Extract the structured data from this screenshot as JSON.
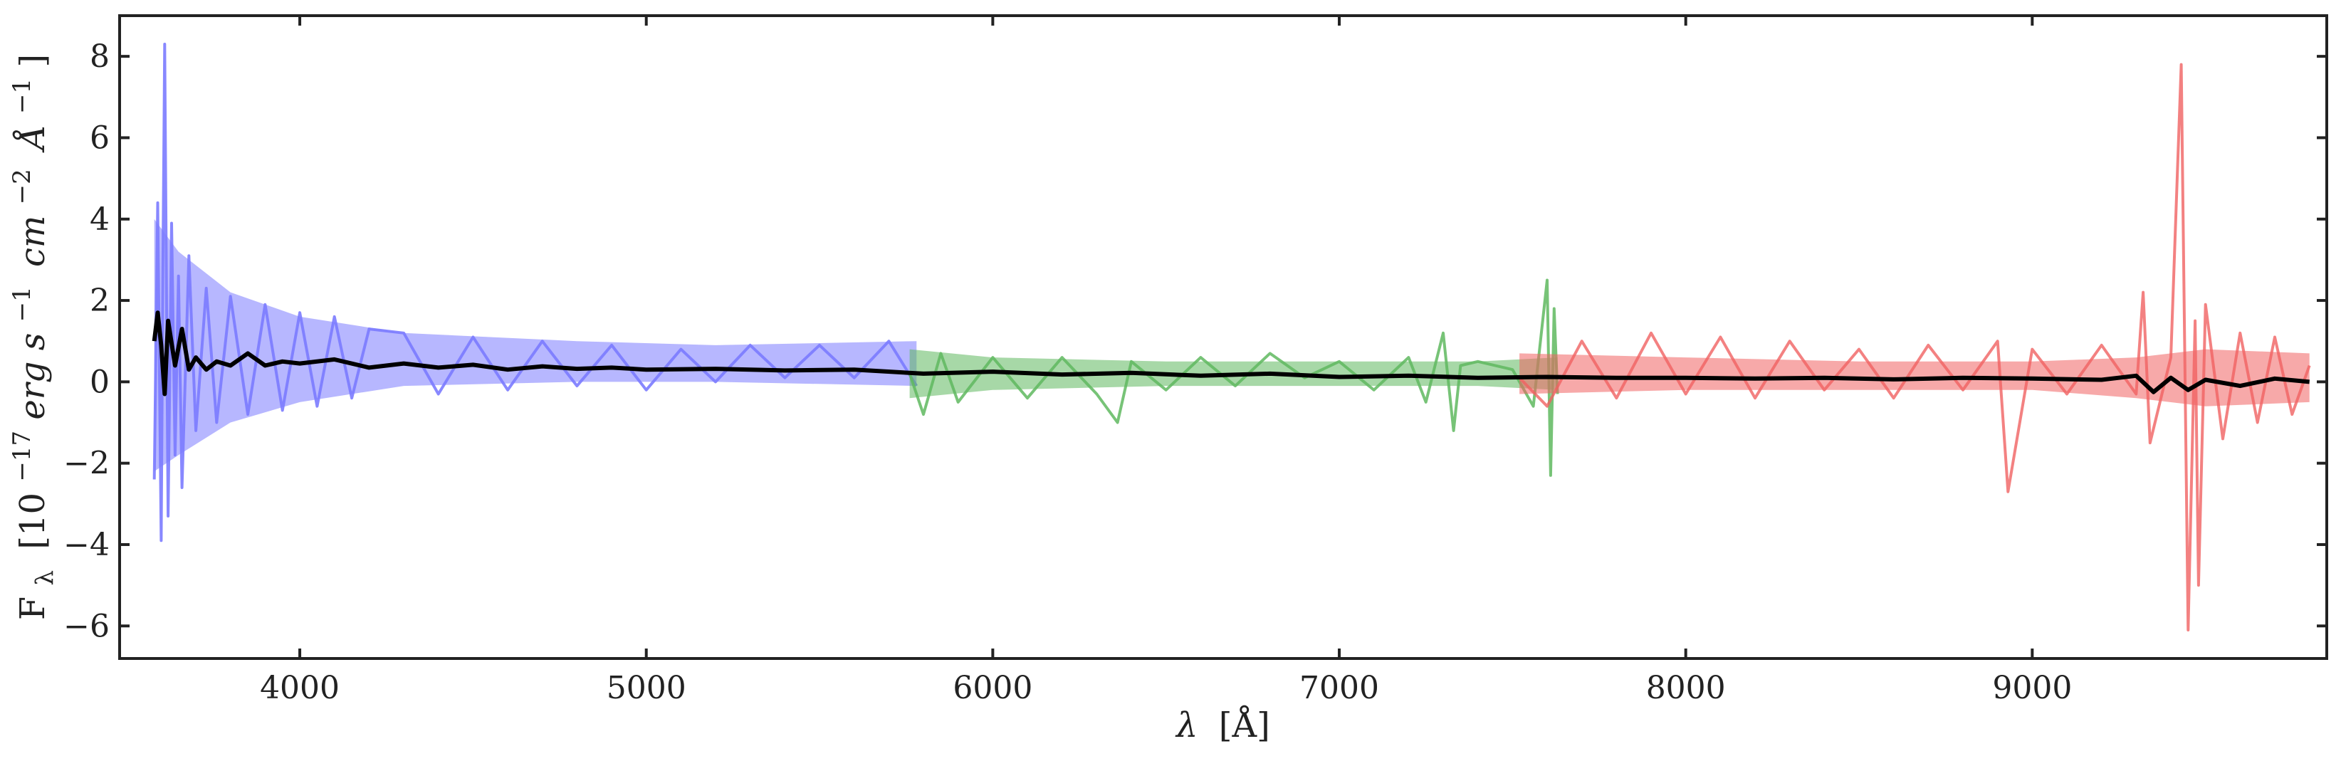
{
  "chart_data": {
    "type": "line",
    "title": "",
    "xlabel": {
      "symbol": "λ",
      "unit": "[Å]"
    },
    "ylabel": {
      "symbol": "F",
      "subscript": "λ",
      "prefix": "[10",
      "exp1": "−17",
      "unit1": "erg s",
      "exp2": "−1",
      "unit2": "cm",
      "exp3": "−2",
      "unit3": "Å",
      "exp4": "−1",
      "suffix": "]"
    },
    "xlim": [
      3480,
      9850
    ],
    "ylim": [
      -6.8,
      9.0
    ],
    "xticks": [
      4000,
      5000,
      6000,
      7000,
      8000,
      9000
    ],
    "yticks": [
      -6,
      -4,
      -2,
      0,
      2,
      4,
      6,
      8
    ],
    "xtick_labels": [
      "4000",
      "5000",
      "6000",
      "7000",
      "8000",
      "9000"
    ],
    "ytick_labels": [
      "−6",
      "−4",
      "−2",
      "0",
      "2",
      "4",
      "6",
      "8"
    ],
    "grid": false,
    "legend": "none",
    "series": [
      {
        "color": "#7b7bff",
        "opacity": 0.9,
        "x": [
          3580,
          3590,
          3600,
          3605,
          3610,
          3620,
          3630,
          3640,
          3650,
          3660,
          3680,
          3700,
          3730,
          3760,
          3800,
          3850,
          3900,
          3950,
          4000,
          4050,
          4100,
          4150,
          4200,
          4300,
          4400,
          4500,
          4600,
          4700,
          4800,
          4900,
          5000,
          5100,
          5200,
          5300,
          5400,
          5500,
          5600,
          5700,
          5780
        ],
        "y": [
          -2.4,
          4.4,
          -3.9,
          2.8,
          8.3,
          -3.3,
          3.9,
          -1.8,
          2.6,
          -2.6,
          3.1,
          -1.2,
          2.3,
          -1.0,
          2.1,
          -0.8,
          1.9,
          -0.7,
          1.7,
          -0.6,
          1.6,
          -0.4,
          1.3,
          1.2,
          -0.3,
          1.1,
          -0.2,
          1.0,
          -0.1,
          0.9,
          -0.2,
          0.8,
          0.0,
          0.9,
          0.1,
          0.9,
          0.1,
          1.0,
          -0.1
        ],
        "envelope": [
          [
            3580,
            -2.2,
            4.0
          ],
          [
            3650,
            -1.8,
            3.2
          ],
          [
            3800,
            -1.0,
            2.2
          ],
          [
            4000,
            -0.5,
            1.6
          ],
          [
            4300,
            -0.1,
            1.2
          ],
          [
            4800,
            0.0,
            1.0
          ],
          [
            5200,
            0.0,
            0.9
          ],
          [
            5780,
            -0.1,
            1.0
          ]
        ]
      },
      {
        "color": "#5fb85f",
        "opacity": 0.85,
        "x": [
          5760,
          5800,
          5850,
          5900,
          6000,
          6100,
          6200,
          6300,
          6360,
          6400,
          6500,
          6600,
          6700,
          6800,
          6850,
          6900,
          7000,
          7100,
          7200,
          7250,
          7300,
          7330,
          7350,
          7400,
          7500,
          7560,
          7600,
          7610,
          7620,
          7630
        ],
        "y": [
          0.2,
          -0.8,
          0.7,
          -0.5,
          0.6,
          -0.4,
          0.6,
          -0.3,
          -1.0,
          0.5,
          -0.2,
          0.6,
          -0.1,
          0.7,
          0.4,
          0.1,
          0.5,
          -0.2,
          0.6,
          -0.5,
          1.2,
          -1.2,
          0.4,
          0.5,
          0.3,
          -0.6,
          2.5,
          -2.3,
          1.8,
          -0.3
        ],
        "envelope": [
          [
            5760,
            -0.4,
            0.8
          ],
          [
            6000,
            -0.2,
            0.6
          ],
          [
            6500,
            -0.1,
            0.5
          ],
          [
            7000,
            -0.1,
            0.5
          ],
          [
            7400,
            -0.1,
            0.5
          ],
          [
            7630,
            -0.2,
            0.6
          ]
        ]
      },
      {
        "color": "#f06262",
        "opacity": 0.8,
        "x": [
          7520,
          7600,
          7700,
          7800,
          7900,
          8000,
          8100,
          8200,
          8300,
          8400,
          8500,
          8600,
          8700,
          8800,
          8900,
          8930,
          9000,
          9100,
          9200,
          9300,
          9320,
          9340,
          9400,
          9430,
          9450,
          9470,
          9480,
          9500,
          9550,
          9600,
          9650,
          9700,
          9750,
          9800
        ],
        "y": [
          0.1,
          -0.6,
          1.0,
          -0.4,
          1.2,
          -0.3,
          1.1,
          -0.4,
          1.0,
          -0.2,
          0.8,
          -0.4,
          0.9,
          -0.2,
          1.0,
          -2.7,
          0.8,
          -0.3,
          0.9,
          -0.3,
          2.2,
          -1.5,
          0.6,
          7.8,
          -6.1,
          1.5,
          -5.0,
          1.9,
          -1.4,
          1.2,
          -1.0,
          1.1,
          -0.8,
          0.4
        ],
        "envelope": [
          [
            7520,
            -0.3,
            0.7
          ],
          [
            8000,
            -0.2,
            0.6
          ],
          [
            8500,
            -0.2,
            0.5
          ],
          [
            9000,
            -0.2,
            0.5
          ],
          [
            9300,
            -0.4,
            0.6
          ],
          [
            9500,
            -0.6,
            0.8
          ],
          [
            9800,
            -0.5,
            0.7
          ]
        ]
      },
      {
        "color": "#000000",
        "opacity": 1.0,
        "x": [
          3580,
          3590,
          3600,
          3610,
          3620,
          3640,
          3660,
          3680,
          3700,
          3730,
          3760,
          3800,
          3850,
          3900,
          3950,
          4000,
          4100,
          4200,
          4300,
          4400,
          4500,
          4600,
          4700,
          4800,
          4900,
          5000,
          5200,
          5400,
          5600,
          5800,
          6000,
          6200,
          6400,
          6600,
          6800,
          7000,
          7200,
          7400,
          7600,
          7800,
          8000,
          8200,
          8400,
          8600,
          8800,
          9000,
          9200,
          9300,
          9350,
          9400,
          9450,
          9500,
          9600,
          9700,
          9800
        ],
        "y": [
          1.0,
          1.7,
          0.9,
          -0.3,
          1.5,
          0.4,
          1.3,
          0.3,
          0.6,
          0.3,
          0.5,
          0.4,
          0.7,
          0.4,
          0.5,
          0.45,
          0.55,
          0.35,
          0.45,
          0.35,
          0.42,
          0.3,
          0.38,
          0.32,
          0.35,
          0.3,
          0.32,
          0.28,
          0.3,
          0.2,
          0.25,
          0.18,
          0.22,
          0.15,
          0.2,
          0.12,
          0.15,
          0.1,
          0.12,
          0.1,
          0.1,
          0.08,
          0.1,
          0.06,
          0.1,
          0.08,
          0.05,
          0.15,
          -0.25,
          0.1,
          -0.2,
          0.05,
          -0.1,
          0.08,
          0.0
        ]
      }
    ]
  }
}
